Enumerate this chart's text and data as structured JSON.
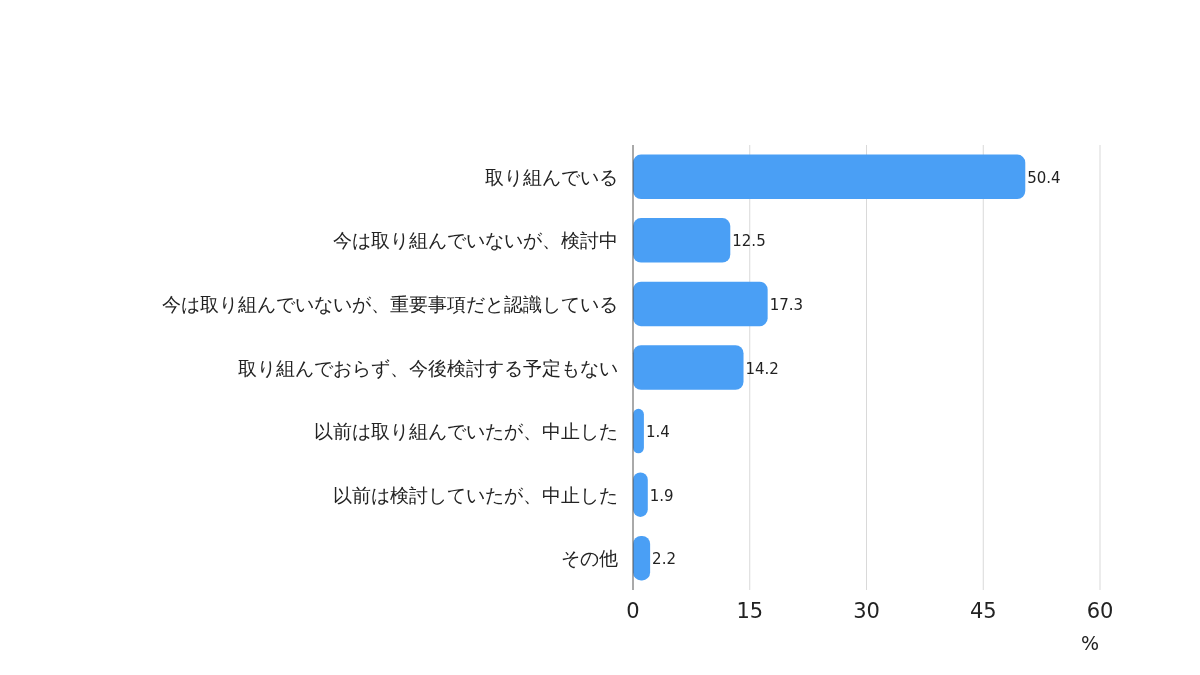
{
  "chart_data": {
    "type": "bar",
    "orientation": "horizontal",
    "categories": [
      "取り組んでいる",
      "今は取り組んでいないが、検討中",
      "今は取り組んでいないが、重要事項だと認識している",
      "取り組んでおらず、今後検討する予定もない",
      "以前は取り組んでいたが、中止した",
      "以前は検討していたが、中止した",
      "その他"
    ],
    "values": [
      50.4,
      12.5,
      17.3,
      14.2,
      1.4,
      1.9,
      2.2
    ],
    "color": "#4a9ff5",
    "xlim": [
      0,
      60
    ],
    "xticks": [
      0,
      15,
      30,
      45,
      60
    ],
    "xlabel": "%",
    "grid": "x",
    "data_labels": true
  }
}
